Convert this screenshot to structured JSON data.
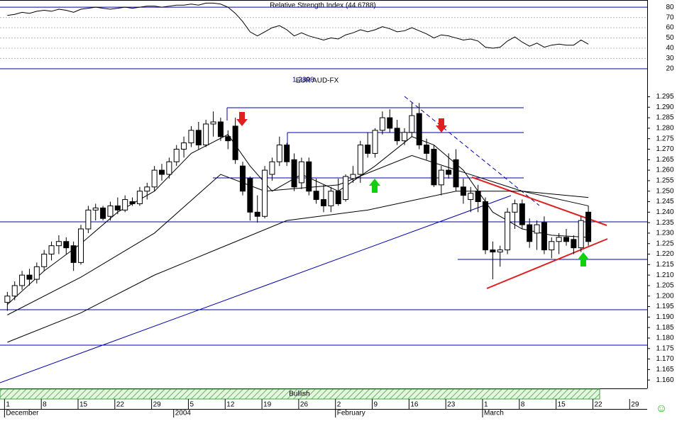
{
  "chart_data": [
    {
      "type": "line",
      "title": "Relative Strength Index (44.6788)",
      "x": [
        0,
        1,
        2,
        3,
        4,
        5,
        6,
        7,
        8,
        9,
        10,
        11,
        12,
        13,
        14,
        15,
        16,
        17,
        18,
        19,
        20,
        21,
        22,
        23,
        24,
        25,
        26,
        27,
        28,
        29,
        30,
        31,
        32,
        33,
        34,
        35,
        36,
        37,
        38,
        39,
        40,
        41,
        42,
        43,
        44,
        45,
        46,
        47,
        48,
        49,
        50,
        51,
        52,
        53,
        54,
        55,
        56,
        57,
        58,
        59,
        60,
        61,
        62,
        63,
        64,
        65,
        66,
        67,
        68,
        69,
        70,
        71,
        72,
        73,
        74,
        75,
        76,
        77,
        78,
        79
      ],
      "series": [
        {
          "name": "RSI",
          "color": "#000000",
          "values": [
            72,
            73,
            75,
            74,
            76,
            77,
            76,
            78,
            77,
            75,
            78,
            79,
            80,
            79,
            78,
            79,
            80,
            79,
            80,
            81,
            81,
            80,
            81,
            82,
            82,
            83,
            82,
            84,
            84,
            83,
            80,
            74,
            66,
            56,
            52,
            56,
            60,
            62,
            58,
            52,
            55,
            52,
            50,
            48,
            50,
            49,
            53,
            55,
            58,
            56,
            58,
            61,
            59,
            56,
            57,
            60,
            57,
            54,
            50,
            53,
            52,
            50,
            48,
            49,
            47,
            41,
            40,
            41,
            47,
            51,
            46,
            42,
            45,
            41,
            43,
            44,
            43,
            43,
            48,
            44
          ]
        }
      ],
      "xlim": [
        -1,
        87
      ],
      "ylim": [
        20,
        87
      ],
      "yticks": [
        20,
        30,
        40,
        50,
        60,
        70,
        80
      ]
    },
    {
      "type": "candlestick",
      "title": "EUR AUD-FX",
      "annotations": [
        "1.2898"
      ],
      "band_label": "Bullish",
      "x": [
        0,
        1,
        2,
        3,
        4,
        5,
        6,
        7,
        8,
        9,
        10,
        11,
        12,
        13,
        14,
        15,
        16,
        17,
        18,
        19,
        20,
        21,
        22,
        23,
        24,
        25,
        26,
        27,
        28,
        29,
        30,
        31,
        32,
        33,
        34,
        35,
        36,
        37,
        38,
        39,
        40,
        41,
        42,
        43,
        44,
        45,
        46,
        47,
        48,
        49,
        50,
        51,
        52,
        53,
        54,
        55,
        56,
        57,
        58,
        59,
        60,
        61,
        62,
        63,
        64,
        65,
        66,
        67,
        68,
        69,
        70,
        71,
        72,
        73,
        74,
        75,
        76,
        77,
        78,
        79
      ],
      "open": [
        1.197,
        1.2,
        1.205,
        1.21,
        1.208,
        1.214,
        1.22,
        1.224,
        1.226,
        1.224,
        1.216,
        1.232,
        1.241,
        1.242,
        1.238,
        1.243,
        1.241,
        1.245,
        1.244,
        1.25,
        1.252,
        1.26,
        1.258,
        1.264,
        1.27,
        1.273,
        1.279,
        1.272,
        1.282,
        1.283,
        1.276,
        1.281,
        1.262,
        1.256,
        1.24,
        1.238,
        1.258,
        1.264,
        1.272,
        1.265,
        1.254,
        1.264,
        1.25,
        1.246,
        1.243,
        1.25,
        1.246,
        1.256,
        1.258,
        1.272,
        1.268,
        1.279,
        1.285,
        1.28,
        1.274,
        1.278,
        1.287,
        1.272,
        1.27,
        1.253,
        1.26,
        1.265,
        1.252,
        1.246,
        1.25,
        1.245,
        1.222,
        1.221,
        1.222,
        1.24,
        1.244,
        1.234,
        1.23,
        1.235,
        1.222,
        1.226,
        1.228,
        1.227,
        1.223,
        1.24
      ],
      "high": [
        1.202,
        1.207,
        1.212,
        1.213,
        1.216,
        1.222,
        1.226,
        1.229,
        1.228,
        1.226,
        1.234,
        1.243,
        1.244,
        1.243,
        1.245,
        1.247,
        1.248,
        1.247,
        1.252,
        1.254,
        1.262,
        1.263,
        1.266,
        1.272,
        1.276,
        1.281,
        1.283,
        1.284,
        1.288,
        1.285,
        1.279,
        1.285,
        1.264,
        1.257,
        1.248,
        1.262,
        1.266,
        1.276,
        1.273,
        1.268,
        1.266,
        1.266,
        1.256,
        1.253,
        1.252,
        1.256,
        1.258,
        1.262,
        1.274,
        1.278,
        1.28,
        1.288,
        1.289,
        1.284,
        1.28,
        1.292,
        1.292,
        1.275,
        1.272,
        1.262,
        1.268,
        1.27,
        1.256,
        1.252,
        1.253,
        1.247,
        1.226,
        1.224,
        1.242,
        1.246,
        1.246,
        1.237,
        1.236,
        1.238,
        1.228,
        1.23,
        1.232,
        1.229,
        1.238,
        1.243
      ],
      "low": [
        1.193,
        1.198,
        1.203,
        1.205,
        1.206,
        1.212,
        1.217,
        1.22,
        1.22,
        1.212,
        1.215,
        1.23,
        1.236,
        1.236,
        1.236,
        1.239,
        1.24,
        1.243,
        1.243,
        1.246,
        1.25,
        1.255,
        1.256,
        1.262,
        1.266,
        1.271,
        1.27,
        1.271,
        1.276,
        1.274,
        1.27,
        1.263,
        1.248,
        1.236,
        1.235,
        1.237,
        1.255,
        1.262,
        1.262,
        1.25,
        1.251,
        1.248,
        1.244,
        1.24,
        1.24,
        1.243,
        1.245,
        1.254,
        1.254,
        1.266,
        1.266,
        1.277,
        1.278,
        1.272,
        1.272,
        1.276,
        1.27,
        1.265,
        1.252,
        1.248,
        1.256,
        1.25,
        1.244,
        1.24,
        1.24,
        1.22,
        1.208,
        1.214,
        1.22,
        1.232,
        1.232,
        1.223,
        1.222,
        1.22,
        1.218,
        1.22,
        1.224,
        1.22,
        1.221,
        1.224
      ],
      "close": [
        1.2,
        1.205,
        1.21,
        1.208,
        1.214,
        1.22,
        1.224,
        1.226,
        1.223,
        1.216,
        1.232,
        1.241,
        1.242,
        1.237,
        1.243,
        1.241,
        1.246,
        1.244,
        1.25,
        1.252,
        1.26,
        1.258,
        1.264,
        1.27,
        1.273,
        1.279,
        1.272,
        1.282,
        1.283,
        1.276,
        1.274,
        1.265,
        1.25,
        1.24,
        1.238,
        1.26,
        1.264,
        1.272,
        1.264,
        1.252,
        1.264,
        1.25,
        1.246,
        1.243,
        1.25,
        1.244,
        1.257,
        1.258,
        1.272,
        1.268,
        1.279,
        1.285,
        1.28,
        1.274,
        1.278,
        1.286,
        1.272,
        1.268,
        1.253,
        1.26,
        1.258,
        1.252,
        1.248,
        1.249,
        1.245,
        1.222,
        1.221,
        1.222,
        1.24,
        1.244,
        1.234,
        1.226,
        1.234,
        1.222,
        1.226,
        1.228,
        1.226,
        1.223,
        1.236,
        1.226
      ],
      "up_color": "#ffffff",
      "down_color": "#000000",
      "series": [
        {
          "name": "MA short",
          "color": "#000000",
          "x": [
            0,
            5,
            10,
            15,
            20,
            25,
            30,
            33,
            36,
            40,
            45,
            50,
            55,
            58,
            62,
            66,
            70,
            74,
            79
          ],
          "values": [
            1.196,
            1.212,
            1.225,
            1.24,
            1.25,
            1.268,
            1.277,
            1.262,
            1.25,
            1.258,
            1.25,
            1.262,
            1.276,
            1.272,
            1.26,
            1.24,
            1.232,
            1.229,
            1.228
          ]
        },
        {
          "name": "MA medium",
          "color": "#000000",
          "x": [
            0,
            10,
            20,
            29,
            35,
            45,
            55,
            62,
            70,
            79
          ],
          "values": [
            1.191,
            1.209,
            1.23,
            1.258,
            1.25,
            1.253,
            1.267,
            1.259,
            1.25,
            1.243
          ]
        },
        {
          "name": "MA long",
          "color": "#000000",
          "x": [
            0,
            10,
            20,
            29,
            38,
            49,
            61,
            70,
            79
          ],
          "values": [
            1.178,
            1.192,
            1.21,
            1.223,
            1.236,
            1.241,
            1.25,
            1.25,
            1.247
          ]
        }
      ],
      "xlim": [
        -1,
        87
      ],
      "ylim": [
        1.156,
        1.308
      ],
      "yticks": [
        {
          "value": 1.16,
          "label": "1.160"
        },
        {
          "value": 1.165,
          "label": "1.165"
        },
        {
          "value": 1.17,
          "label": "1.170"
        },
        {
          "value": 1.175,
          "label": "1.175"
        },
        {
          "value": 1.18,
          "label": "1.180"
        },
        {
          "value": 1.185,
          "label": "1.185"
        },
        {
          "value": 1.19,
          "label": "1.190"
        },
        {
          "value": 1.195,
          "label": "1.195"
        },
        {
          "value": 1.2,
          "label": "1.200"
        },
        {
          "value": 1.205,
          "label": "1.205"
        },
        {
          "value": 1.21,
          "label": "1.210"
        },
        {
          "value": 1.215,
          "label": "1.215"
        },
        {
          "value": 1.22,
          "label": "1.220"
        },
        {
          "value": 1.225,
          "label": "1.225"
        },
        {
          "value": 1.23,
          "label": "1.230"
        },
        {
          "value": 1.235,
          "label": "1.235"
        },
        {
          "value": 1.24,
          "label": "1.240"
        },
        {
          "value": 1.245,
          "label": "1.245"
        },
        {
          "value": 1.25,
          "label": "1.250"
        },
        {
          "value": 1.255,
          "label": "1.255"
        },
        {
          "value": 1.26,
          "label": "1.260"
        },
        {
          "value": 1.265,
          "label": "1.265"
        },
        {
          "value": 1.27,
          "label": "1.270"
        },
        {
          "value": 1.275,
          "label": "1.275"
        },
        {
          "value": 1.28,
          "label": "1.280"
        },
        {
          "value": 1.285,
          "label": "1.285"
        },
        {
          "value": 1.29,
          "label": "1.290"
        },
        {
          "value": 1.295,
          "label": "1.295"
        }
      ],
      "xticks": [
        {
          "value": 0,
          "label": "1"
        },
        {
          "value": 5,
          "label": "8"
        },
        {
          "value": 10,
          "label": "15"
        },
        {
          "value": 15,
          "label": "22"
        },
        {
          "value": 20,
          "label": "29"
        },
        {
          "value": 25,
          "label": "5"
        },
        {
          "value": 30,
          "label": "12"
        },
        {
          "value": 35,
          "label": "19"
        },
        {
          "value": 40,
          "label": "26"
        },
        {
          "value": 45,
          "label": "2"
        },
        {
          "value": 50,
          "label": "9"
        },
        {
          "value": 55,
          "label": "16"
        },
        {
          "value": 60,
          "label": "23"
        },
        {
          "value": 65,
          "label": "1"
        },
        {
          "value": 70,
          "label": "8"
        },
        {
          "value": 75,
          "label": "15"
        },
        {
          "value": 80,
          "label": "22"
        },
        {
          "value": 85,
          "label": "29"
        }
      ],
      "month_labels": [
        {
          "value": 0,
          "label": "December"
        },
        {
          "value": 23,
          "label": "2004"
        },
        {
          "value": 45,
          "label": "February"
        },
        {
          "value": 65,
          "label": "March"
        }
      ]
    }
  ]
}
